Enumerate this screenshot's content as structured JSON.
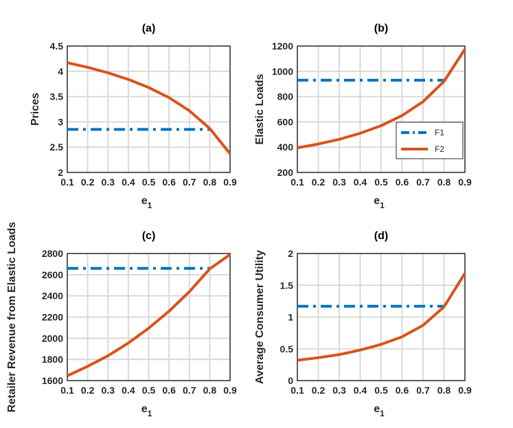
{
  "colors": {
    "F1": "#0072BD",
    "F2": "#D95319"
  },
  "chart_data": [
    {
      "type": "line",
      "title": "(a)",
      "xlabel": "e",
      "xlabel_sub": "1",
      "ylabel": "Prices",
      "x": [
        0.1,
        0.2,
        0.3,
        0.4,
        0.5,
        0.6,
        0.7,
        0.8,
        0.9
      ],
      "xlim": [
        0.1,
        0.9
      ],
      "ylim": [
        2,
        4.5
      ],
      "xticks": [
        "0.1",
        "0.2",
        "0.3",
        "0.4",
        "0.5",
        "0.6",
        "0.7",
        "0.8",
        "0.9"
      ],
      "yticks": [
        "2",
        "2.5",
        "3",
        "3.5",
        "4",
        "4.5"
      ],
      "ytick_values": [
        2,
        2.5,
        3,
        3.5,
        4,
        4.5
      ],
      "series": [
        {
          "name": "F1",
          "style": "dashdot",
          "x": [
            0.1,
            0.8
          ],
          "values": [
            2.85,
            2.85
          ]
        },
        {
          "name": "F2",
          "style": "solid",
          "x": [
            0.1,
            0.2,
            0.3,
            0.4,
            0.5,
            0.6,
            0.7,
            0.8,
            0.9
          ],
          "values": [
            4.17,
            4.08,
            3.97,
            3.84,
            3.68,
            3.48,
            3.22,
            2.87,
            2.37
          ]
        }
      ]
    },
    {
      "type": "line",
      "title": "(b)",
      "xlabel": "e",
      "xlabel_sub": "1",
      "ylabel": "Elastic Loads",
      "x": [
        0.1,
        0.2,
        0.3,
        0.4,
        0.5,
        0.6,
        0.7,
        0.8,
        0.9
      ],
      "xlim": [
        0.1,
        0.9
      ],
      "ylim": [
        200,
        1200
      ],
      "xticks": [
        "0.1",
        "0.2",
        "0.3",
        "0.4",
        "0.5",
        "0.6",
        "0.7",
        "0.8",
        "0.9"
      ],
      "yticks": [
        "200",
        "400",
        "600",
        "800",
        "1000",
        "1200"
      ],
      "ytick_values": [
        200,
        400,
        600,
        800,
        1000,
        1200
      ],
      "legend": {
        "position": "bottom-right",
        "entries": [
          "F1",
          "F2"
        ]
      },
      "series": [
        {
          "name": "F1",
          "style": "dashdot",
          "x": [
            0.1,
            0.8
          ],
          "values": [
            930,
            930
          ]
        },
        {
          "name": "F2",
          "style": "solid",
          "x": [
            0.1,
            0.2,
            0.3,
            0.4,
            0.5,
            0.6,
            0.7,
            0.8,
            0.9
          ],
          "values": [
            395,
            425,
            462,
            510,
            570,
            650,
            760,
            920,
            1175
          ]
        }
      ]
    },
    {
      "type": "line",
      "title": "(c)",
      "xlabel": "e",
      "xlabel_sub": "1",
      "ylabel": "Retailer Revenue from Elastic Loads",
      "x": [
        0.1,
        0.2,
        0.3,
        0.4,
        0.5,
        0.6,
        0.7,
        0.8,
        0.9
      ],
      "xlim": [
        0.1,
        0.9
      ],
      "ylim": [
        1600,
        2800
      ],
      "xticks": [
        "0.1",
        "0.2",
        "0.3",
        "0.4",
        "0.5",
        "0.6",
        "0.7",
        "0.8",
        "0.9"
      ],
      "yticks": [
        "1600",
        "1800",
        "2000",
        "2200",
        "2400",
        "2600",
        "2800"
      ],
      "ytick_values": [
        1600,
        1800,
        2000,
        2200,
        2400,
        2600,
        2800
      ],
      "series": [
        {
          "name": "F1",
          "style": "dashdot",
          "x": [
            0.1,
            0.8
          ],
          "values": [
            2660,
            2660
          ]
        },
        {
          "name": "F2",
          "style": "solid",
          "x": [
            0.1,
            0.2,
            0.3,
            0.4,
            0.5,
            0.6,
            0.7,
            0.8,
            0.9
          ],
          "values": [
            1645,
            1735,
            1835,
            1955,
            2095,
            2255,
            2440,
            2655,
            2790
          ]
        }
      ]
    },
    {
      "type": "line",
      "title": "(d)",
      "xlabel": "e",
      "xlabel_sub": "1",
      "ylabel": "Average Consumer Utility",
      "x": [
        0.1,
        0.2,
        0.3,
        0.4,
        0.5,
        0.6,
        0.7,
        0.8,
        0.9
      ],
      "xlim": [
        0.1,
        0.9
      ],
      "ylim": [
        0,
        2
      ],
      "xticks": [
        "0.1",
        "0.2",
        "0.3",
        "0.4",
        "0.5",
        "0.6",
        "0.7",
        "0.8",
        "0.9"
      ],
      "yticks": [
        "0",
        "0.5",
        "1",
        "1.5",
        "2"
      ],
      "ytick_values": [
        0,
        0.5,
        1,
        1.5,
        2
      ],
      "series": [
        {
          "name": "F1",
          "style": "dashdot",
          "x": [
            0.1,
            0.8
          ],
          "values": [
            1.17,
            1.17
          ]
        },
        {
          "name": "F2",
          "style": "solid",
          "x": [
            0.1,
            0.2,
            0.3,
            0.4,
            0.5,
            0.6,
            0.7,
            0.8,
            0.9
          ],
          "values": [
            0.32,
            0.36,
            0.41,
            0.48,
            0.57,
            0.69,
            0.87,
            1.16,
            1.69
          ]
        }
      ]
    }
  ]
}
